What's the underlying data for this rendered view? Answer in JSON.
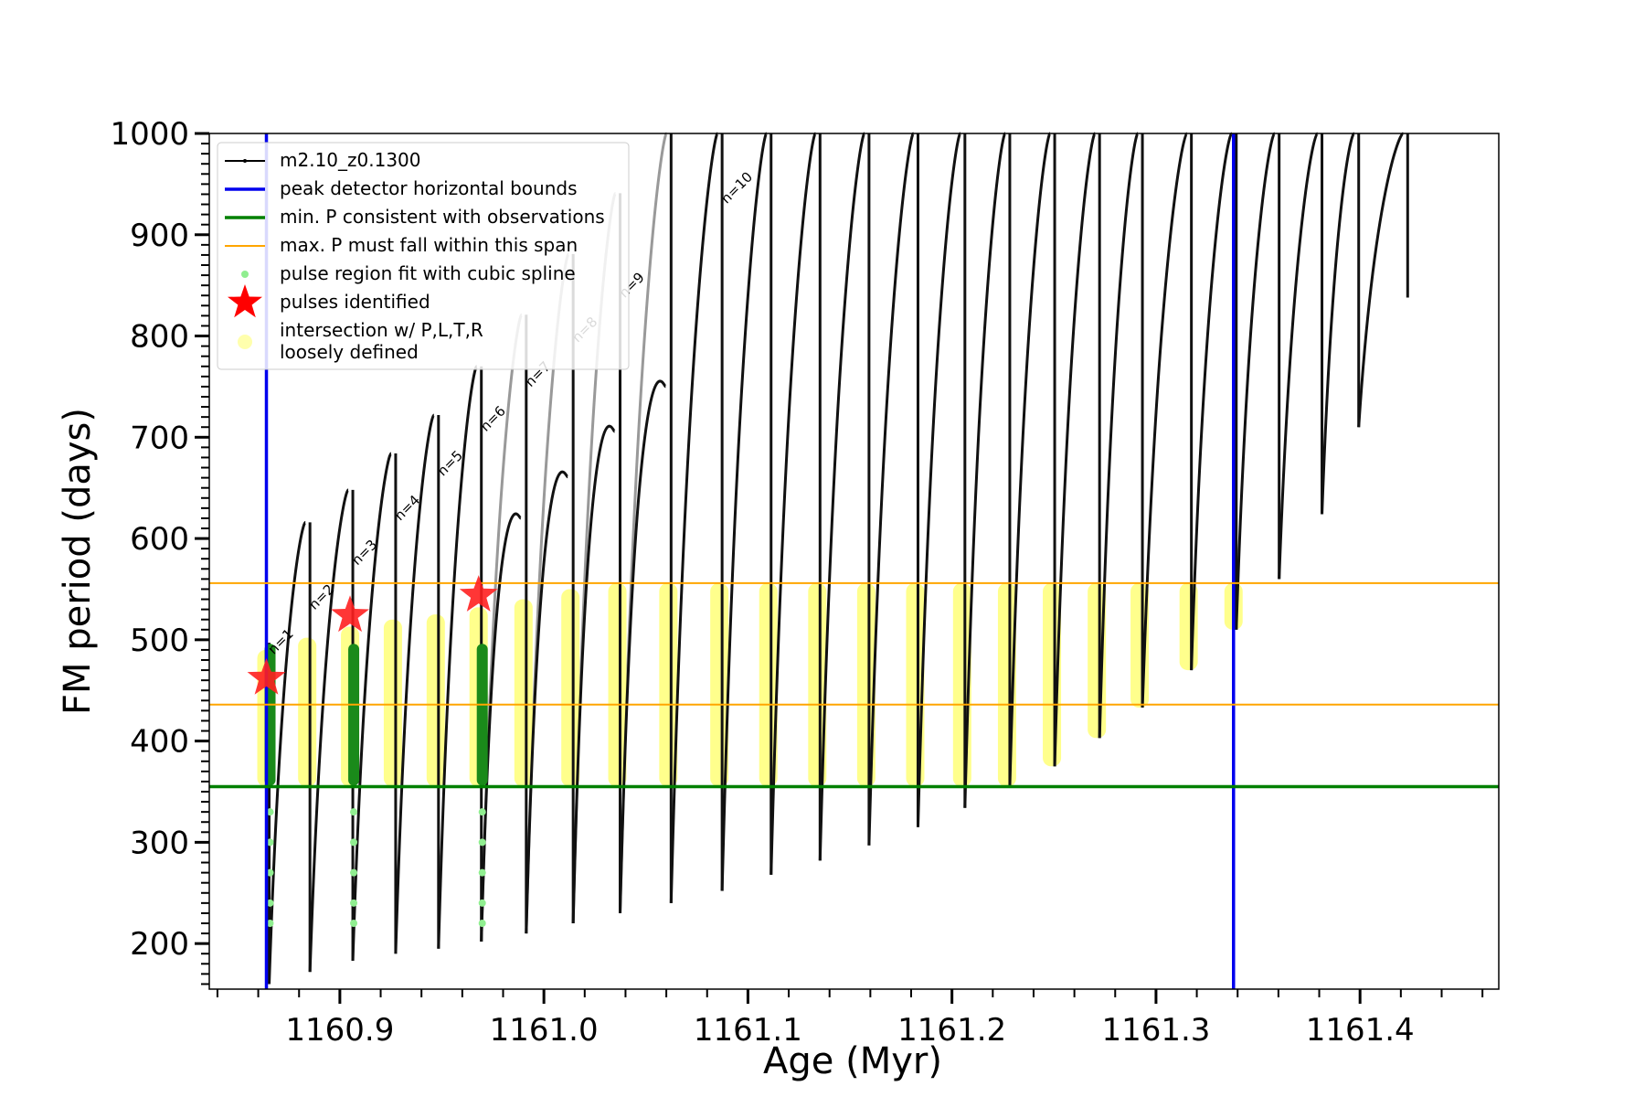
{
  "chart_data": {
    "type": "line",
    "xlabel": "Age (Myr)",
    "ylabel": "FM period (days)",
    "xlim": [
      1160.836,
      1161.468
    ],
    "ylim": [
      155,
      1000
    ],
    "xticks": [
      1160.9,
      1161.0,
      1161.1,
      1161.2,
      1161.3,
      1161.4
    ],
    "xtick_labels": [
      "1160.9",
      "1161.0",
      "1161.1",
      "1161.2",
      "1161.3",
      "1161.4"
    ],
    "yticks": [
      200,
      300,
      400,
      500,
      600,
      700,
      800,
      900,
      1000
    ],
    "ytick_labels": [
      "200",
      "300",
      "400",
      "500",
      "600",
      "700",
      "800",
      "900",
      "1000"
    ],
    "legend": {
      "position": "top-left",
      "entries": [
        {
          "label": "m2.10_z0.1300",
          "marker": "line-dot",
          "color": "#000000"
        },
        {
          "label": "peak detector horizontal bounds",
          "marker": "line",
          "color": "#0000ee"
        },
        {
          "label": "min. P consistent with observations",
          "marker": "line",
          "color": "#008000"
        },
        {
          "label": "max. P must fall within this span",
          "marker": "line",
          "color": "#ffa500"
        },
        {
          "label": "pulse region fit with cubic spline",
          "marker": "dot",
          "color": "#90ee90"
        },
        {
          "label": "pulses identified",
          "marker": "star",
          "color": "#ff0000"
        },
        {
          "label": "intersection w/ P,L,T,R\nloosely defined",
          "marker": "circle",
          "color": "#ffff99"
        }
      ]
    },
    "vertical_bounds": [
      1160.864,
      1161.338
    ],
    "min_period_line": 355,
    "max_period_span": [
      436,
      556
    ],
    "pulses": [
      {
        "x": 1160.864,
        "peak": 497,
        "min": 160,
        "n_label": "n=1"
      },
      {
        "x": 1160.884,
        "peak": 616,
        "min": 172,
        "n_label": "n=2"
      },
      {
        "x": 1160.905,
        "peak": 648,
        "min": 183,
        "n_label": "n=3"
      },
      {
        "x": 1160.926,
        "peak": 684,
        "min": 190,
        "n_label": "n=4"
      },
      {
        "x": 1160.947,
        "peak": 722,
        "min": 195,
        "n_label": "n=5"
      },
      {
        "x": 1160.968,
        "peak": 770,
        "min": 202,
        "n_label": "n=6"
      },
      {
        "x": 1160.99,
        "peak": 821,
        "min": 210,
        "n_label": "n=7"
      },
      {
        "x": 1161.013,
        "peak": 881,
        "min": 220,
        "n_label": "n=8"
      },
      {
        "x": 1161.036,
        "peak": 941,
        "min": 230,
        "n_label": "n=9"
      },
      {
        "x": 1161.061,
        "peak": 1000,
        "min": 240,
        "n_label": ""
      },
      {
        "x": 1161.086,
        "peak": 1000,
        "min": 252,
        "n_label": "n=10"
      },
      {
        "x": 1161.11,
        "peak": 1000,
        "min": 268,
        "n_label": ""
      },
      {
        "x": 1161.134,
        "peak": 1000,
        "min": 282,
        "n_label": ""
      },
      {
        "x": 1161.158,
        "peak": 1000,
        "min": 297,
        "n_label": ""
      },
      {
        "x": 1161.182,
        "peak": 1000,
        "min": 315,
        "n_label": ""
      },
      {
        "x": 1161.205,
        "peak": 1000,
        "min": 334,
        "n_label": ""
      },
      {
        "x": 1161.227,
        "peak": 1000,
        "min": 354,
        "n_label": ""
      },
      {
        "x": 1161.249,
        "peak": 1000,
        "min": 375,
        "n_label": ""
      },
      {
        "x": 1161.271,
        "peak": 1000,
        "min": 403,
        "n_label": ""
      },
      {
        "x": 1161.292,
        "peak": 1000,
        "min": 433,
        "n_label": ""
      },
      {
        "x": 1161.316,
        "peak": 1000,
        "min": 470,
        "n_label": ""
      },
      {
        "x": 1161.338,
        "peak": 1000,
        "min": 510,
        "n_label": ""
      },
      {
        "x": 1161.359,
        "peak": 1000,
        "min": 560,
        "n_label": ""
      },
      {
        "x": 1161.38,
        "peak": 1000,
        "min": 624,
        "n_label": ""
      },
      {
        "x": 1161.398,
        "peak": 1000,
        "min": 710,
        "n_label": ""
      },
      {
        "x": 1161.422,
        "peak": 1000,
        "min": 838,
        "n_label": ""
      }
    ],
    "identified_pulses": [
      {
        "x": 1160.864,
        "y": 462
      },
      {
        "x": 1160.905,
        "y": 524
      },
      {
        "x": 1160.968,
        "y": 544
      }
    ],
    "grid": false
  }
}
